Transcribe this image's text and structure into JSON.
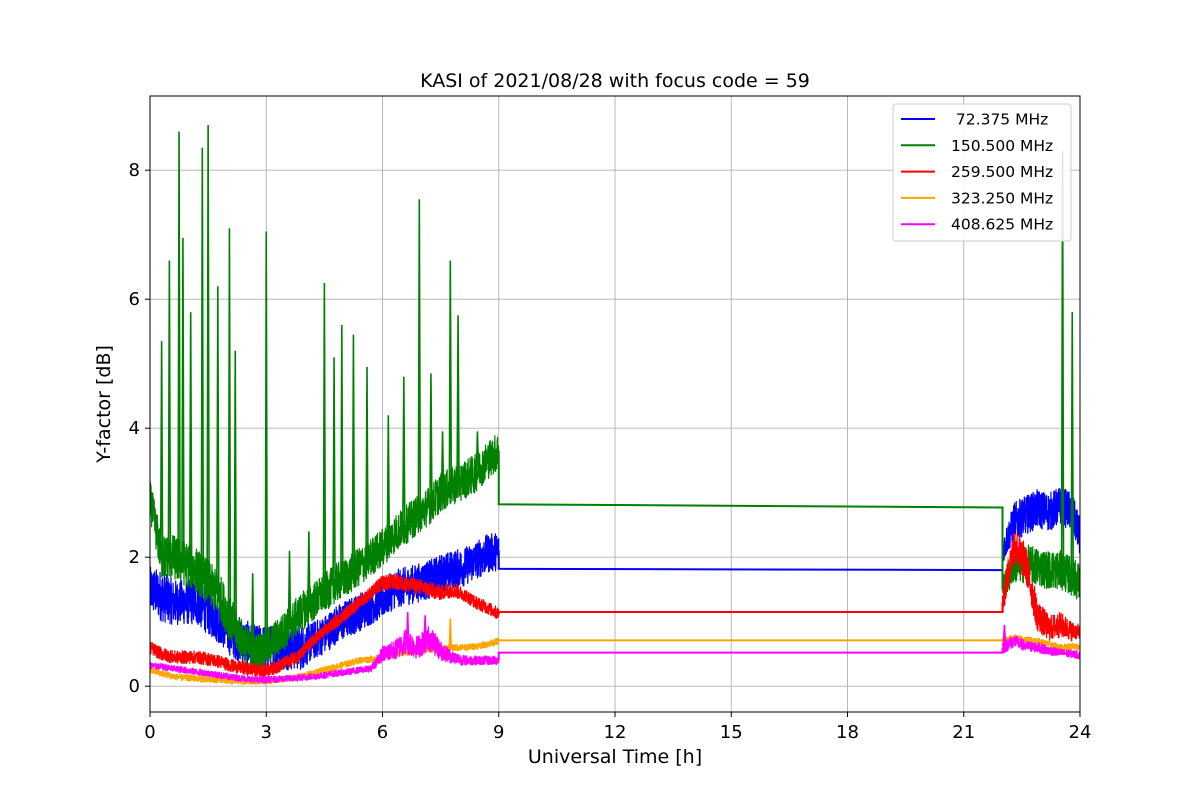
{
  "chart_data": {
    "type": "line",
    "title": "KASI of 2021/08/28 with focus code = 59",
    "xlabel": "Universal Time [h]",
    "ylabel": "Y-factor [dB]",
    "xlim": [
      0,
      24
    ],
    "ylim": [
      -0.4,
      9.15
    ],
    "xticks": [
      0,
      3,
      6,
      9,
      12,
      15,
      18,
      21,
      24
    ],
    "yticks": [
      0,
      2,
      4,
      6,
      8
    ],
    "grid": true,
    "legend_position": "top-right",
    "series": [
      {
        "name": " 72.375 MHz",
        "color": "#0000ff",
        "x": [
          0,
          0.3,
          0.6,
          0.9,
          1.2,
          1.5,
          1.8,
          2.1,
          2.4,
          2.7,
          3.0,
          3.3,
          3.6,
          3.9,
          4.2,
          4.5,
          4.8,
          5.1,
          5.4,
          5.7,
          6.0,
          6.3,
          6.6,
          6.9,
          7.2,
          7.5,
          7.8,
          8.1,
          8.4,
          8.7,
          9.0,
          22.0,
          22.3,
          22.6,
          22.9,
          23.2,
          23.5,
          23.8,
          24.0
        ],
        "y": [
          1.5,
          1.4,
          1.3,
          1.3,
          1.3,
          1.15,
          1.0,
          0.8,
          0.7,
          0.6,
          0.6,
          0.6,
          0.6,
          0.6,
          0.7,
          0.8,
          0.95,
          1.05,
          1.15,
          1.25,
          1.35,
          1.5,
          1.55,
          1.6,
          1.65,
          1.75,
          1.8,
          1.85,
          1.95,
          2.05,
          2.1,
          2.1,
          2.55,
          2.65,
          2.75,
          2.7,
          2.8,
          2.7,
          2.3
        ],
        "band": [
          0.35,
          0.4,
          0.35,
          0.35,
          0.35,
          0.35,
          0.35,
          0.35,
          0.35,
          0.35,
          0.35,
          0.35,
          0.35,
          0.35,
          0.3,
          0.3,
          0.3,
          0.3,
          0.3,
          0.3,
          0.3,
          0.3,
          0.3,
          0.3,
          0.3,
          0.3,
          0.3,
          0.3,
          0.3,
          0.3,
          0.3,
          0.2,
          0.3,
          0.3,
          0.3,
          0.3,
          0.3,
          0.3,
          0.3
        ],
        "flat": {
          "x": [
            9.0,
            22.0
          ],
          "y": [
            1.82,
            1.8
          ]
        }
      },
      {
        "name": "150.500 MHz",
        "color": "#008000",
        "x": [
          0,
          0.3,
          0.6,
          0.9,
          1.2,
          1.5,
          1.8,
          2.1,
          2.4,
          2.7,
          3.0,
          3.3,
          3.6,
          3.9,
          4.2,
          4.5,
          4.8,
          5.1,
          5.4,
          5.7,
          6.0,
          6.3,
          6.6,
          6.9,
          7.2,
          7.5,
          7.8,
          8.1,
          8.4,
          8.7,
          9.0,
          22.0,
          22.3,
          22.6,
          22.9,
          23.2,
          23.5,
          23.8,
          24.0
        ],
        "y": [
          2.9,
          2.0,
          2.0,
          1.9,
          1.8,
          1.6,
          1.4,
          1.0,
          0.7,
          0.5,
          0.6,
          0.75,
          0.95,
          1.15,
          1.3,
          1.45,
          1.6,
          1.7,
          1.85,
          2.0,
          2.15,
          2.35,
          2.5,
          2.65,
          2.8,
          3.0,
          3.1,
          3.2,
          3.3,
          3.5,
          3.65,
          1.5,
          1.9,
          1.9,
          1.85,
          1.8,
          1.8,
          1.7,
          1.6
        ],
        "band": [
          0.3,
          0.35,
          0.35,
          0.35,
          0.35,
          0.35,
          0.35,
          0.35,
          0.3,
          0.3,
          0.3,
          0.3,
          0.3,
          0.3,
          0.3,
          0.3,
          0.3,
          0.3,
          0.3,
          0.3,
          0.3,
          0.3,
          0.3,
          0.3,
          0.3,
          0.3,
          0.3,
          0.3,
          0.3,
          0.3,
          0.3,
          0.2,
          0.3,
          0.3,
          0.3,
          0.3,
          0.3,
          0.3,
          0.3
        ],
        "spikes": [
          [
            0.3,
            5.35
          ],
          [
            0.5,
            6.6
          ],
          [
            0.75,
            8.6
          ],
          [
            0.85,
            6.95
          ],
          [
            1.05,
            5.8
          ],
          [
            1.35,
            8.35
          ],
          [
            1.5,
            8.7
          ],
          [
            1.75,
            6.2
          ],
          [
            2.05,
            7.1
          ],
          [
            2.2,
            5.2
          ],
          [
            2.65,
            1.75
          ],
          [
            3.0,
            7.05
          ],
          [
            3.6,
            2.1
          ],
          [
            4.1,
            2.4
          ],
          [
            4.5,
            6.25
          ],
          [
            4.75,
            5.1
          ],
          [
            4.95,
            5.6
          ],
          [
            5.25,
            5.45
          ],
          [
            5.6,
            4.95
          ],
          [
            6.15,
            4.2
          ],
          [
            6.55,
            4.8
          ],
          [
            6.95,
            7.55
          ],
          [
            7.25,
            4.85
          ],
          [
            7.55,
            3.95
          ],
          [
            7.75,
            6.6
          ],
          [
            7.95,
            5.75
          ],
          [
            8.45,
            3.95
          ],
          [
            23.55,
            8.3
          ],
          [
            23.8,
            5.8
          ]
        ],
        "flat": {
          "x": [
            9.0,
            22.0
          ],
          "y": [
            2.82,
            2.77
          ]
        }
      },
      {
        "name": "259.500 MHz",
        "color": "#ff0000",
        "x": [
          0,
          0.3,
          0.6,
          0.9,
          1.2,
          1.5,
          1.8,
          2.1,
          2.4,
          2.7,
          3.0,
          3.3,
          3.6,
          3.9,
          4.2,
          4.5,
          4.8,
          5.1,
          5.4,
          5.7,
          6.0,
          6.3,
          6.6,
          6.9,
          7.2,
          7.5,
          7.8,
          8.1,
          8.4,
          8.7,
          9.0,
          22.0,
          22.3,
          22.6,
          22.9,
          23.2,
          23.5,
          23.8,
          24.0
        ],
        "y": [
          0.6,
          0.5,
          0.45,
          0.45,
          0.45,
          0.42,
          0.38,
          0.32,
          0.28,
          0.25,
          0.25,
          0.3,
          0.4,
          0.5,
          0.7,
          0.85,
          1.0,
          1.15,
          1.3,
          1.45,
          1.6,
          1.62,
          1.58,
          1.55,
          1.5,
          1.45,
          1.5,
          1.42,
          1.3,
          1.22,
          1.12,
          1.3,
          2.2,
          1.9,
          1.1,
          0.9,
          0.95,
          0.85,
          0.85
        ],
        "band": [
          0.1,
          0.1,
          0.1,
          0.1,
          0.1,
          0.1,
          0.1,
          0.1,
          0.1,
          0.1,
          0.1,
          0.1,
          0.1,
          0.1,
          0.1,
          0.1,
          0.1,
          0.1,
          0.1,
          0.1,
          0.12,
          0.12,
          0.12,
          0.12,
          0.12,
          0.12,
          0.12,
          0.1,
          0.1,
          0.1,
          0.1,
          0.2,
          0.3,
          0.3,
          0.25,
          0.2,
          0.2,
          0.15,
          0.1
        ],
        "flat": {
          "x": [
            9.0,
            22.0
          ],
          "y": [
            1.15,
            1.15
          ]
        }
      },
      {
        "name": "323.250 MHz",
        "color": "#ffa500",
        "x": [
          0,
          0.3,
          0.6,
          0.9,
          1.2,
          1.5,
          1.8,
          2.1,
          2.4,
          2.7,
          3.0,
          3.3,
          3.6,
          3.9,
          4.2,
          4.5,
          4.8,
          5.1,
          5.4,
          5.7,
          6.0,
          6.3,
          6.6,
          6.9,
          7.2,
          7.5,
          7.8,
          8.1,
          8.4,
          8.7,
          9.0,
          22.0,
          22.3,
          22.6,
          22.9,
          23.2,
          23.5,
          23.8,
          24.0
        ],
        "y": [
          0.25,
          0.2,
          0.15,
          0.13,
          0.12,
          0.1,
          0.1,
          0.08,
          0.08,
          0.08,
          0.08,
          0.1,
          0.12,
          0.15,
          0.2,
          0.25,
          0.3,
          0.35,
          0.4,
          0.42,
          0.45,
          0.5,
          0.52,
          0.55,
          0.57,
          0.58,
          0.6,
          0.6,
          0.62,
          0.65,
          0.7,
          0.7,
          0.75,
          0.72,
          0.7,
          0.65,
          0.6,
          0.62,
          0.6
        ],
        "band": [
          0.05,
          0.05,
          0.05,
          0.05,
          0.05,
          0.05,
          0.05,
          0.05,
          0.05,
          0.05,
          0.05,
          0.05,
          0.05,
          0.05,
          0.05,
          0.05,
          0.05,
          0.05,
          0.05,
          0.05,
          0.05,
          0.05,
          0.05,
          0.05,
          0.05,
          0.05,
          0.05,
          0.05,
          0.05,
          0.05,
          0.05,
          0.05,
          0.05,
          0.05,
          0.05,
          0.05,
          0.05,
          0.05,
          0.05
        ],
        "spikes": [
          [
            7.75,
            1.05
          ],
          [
            22.05,
            0.95
          ]
        ],
        "flat": {
          "x": [
            9.0,
            22.0
          ],
          "y": [
            0.71,
            0.71
          ]
        }
      },
      {
        "name": "408.625 MHz",
        "color": "#ff00ff",
        "x": [
          0,
          0.3,
          0.6,
          0.9,
          1.2,
          1.5,
          1.8,
          2.1,
          2.4,
          2.7,
          3.0,
          3.3,
          3.6,
          3.9,
          4.2,
          4.5,
          4.8,
          5.1,
          5.4,
          5.7,
          6.0,
          6.3,
          6.6,
          6.9,
          7.2,
          7.5,
          7.8,
          8.1,
          8.4,
          8.7,
          9.0,
          22.0,
          22.3,
          22.6,
          22.9,
          23.2,
          23.5,
          23.8,
          24.0
        ],
        "y": [
          0.32,
          0.3,
          0.27,
          0.25,
          0.22,
          0.2,
          0.17,
          0.14,
          0.12,
          0.1,
          0.1,
          0.11,
          0.12,
          0.13,
          0.15,
          0.17,
          0.2,
          0.22,
          0.25,
          0.27,
          0.5,
          0.55,
          0.7,
          0.6,
          0.75,
          0.55,
          0.45,
          0.4,
          0.4,
          0.4,
          0.4,
          0.6,
          0.7,
          0.62,
          0.6,
          0.55,
          0.52,
          0.5,
          0.48
        ],
        "band": [
          0.05,
          0.05,
          0.05,
          0.05,
          0.05,
          0.05,
          0.05,
          0.05,
          0.05,
          0.05,
          0.05,
          0.05,
          0.05,
          0.05,
          0.05,
          0.05,
          0.05,
          0.05,
          0.05,
          0.05,
          0.12,
          0.15,
          0.2,
          0.18,
          0.2,
          0.15,
          0.1,
          0.08,
          0.07,
          0.07,
          0.07,
          0.1,
          0.1,
          0.08,
          0.08,
          0.07,
          0.06,
          0.06,
          0.06
        ],
        "spikes": [
          [
            6.65,
            1.15
          ],
          [
            7.1,
            1.1
          ],
          [
            22.05,
            0.95
          ]
        ],
        "flat": {
          "x": [
            9.0,
            22.0
          ],
          "y": [
            0.52,
            0.52
          ]
        }
      }
    ]
  }
}
